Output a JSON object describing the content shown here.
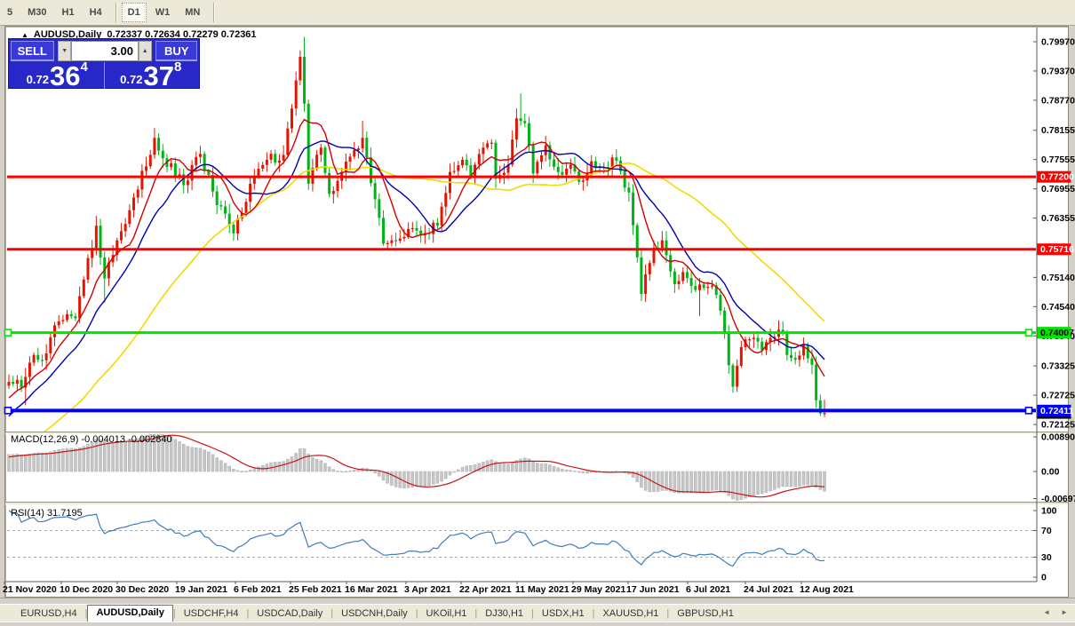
{
  "toolbar": {
    "items": [
      {
        "label": "5",
        "active": false
      },
      {
        "label": "M30",
        "active": false
      },
      {
        "label": "H1",
        "active": false
      },
      {
        "label": "H4",
        "active": false
      },
      {
        "separator": true
      },
      {
        "label": "D1",
        "active": true
      },
      {
        "label": "W1",
        "active": false
      },
      {
        "label": "MN",
        "active": false
      },
      {
        "separator": true
      }
    ]
  },
  "chart_header": {
    "marker": "▲",
    "symbol": "AUDUSD,Daily",
    "values": "0.72337 0.72634 0.72279 0.72361"
  },
  "trade_panel": {
    "sell_label": "SELL",
    "buy_label": "BUY",
    "volume": "3.00",
    "spinner_down": "▼",
    "spinner_up": "▲",
    "bid": {
      "prefix": "0.72",
      "big": "36",
      "sup": "4"
    },
    "ask": {
      "prefix": "0.72",
      "big": "37",
      "sup": "8"
    }
  },
  "macd": {
    "label": "MACD(12,26,9) -0.004013 -0.002840",
    "axis": [
      "0.008903",
      "0.00",
      "-0.006977"
    ]
  },
  "rsi": {
    "label": "RSI(14) 31.7195",
    "axis": [
      "100",
      "70",
      "30",
      "0"
    ],
    "levels": [
      70,
      30
    ]
  },
  "price_axis": {
    "ticks": [
      "0.79970",
      "0.79370",
      "0.78770",
      "0.78155",
      "0.77555",
      "0.76955",
      "0.76355",
      "0.75140",
      "0.74540",
      "0.73940",
      "0.73325",
      "0.72725",
      "0.72125"
    ]
  },
  "current_price_label": {
    "text": "0.72361",
    "price": 0.72361,
    "bg": "#000000",
    "fg": "#FFFFFF"
  },
  "x_axis": {
    "labels": [
      "21 Nov 2020",
      "10 Dec 2020",
      "30 Dec 2020",
      "19 Jan 2021",
      "6 Feb 2021",
      "25 Feb 2021",
      "16 Mar 2021",
      "3 Apr 2021",
      "22 Apr 2021",
      "11 May 2021",
      "29 May 2021",
      "17 Jun 2021",
      "6 Jul 2021",
      "24 Jul 2021",
      "12 Aug 2021"
    ]
  },
  "chart_data": {
    "type": "candlestick",
    "symbol": "AUDUSD",
    "timeframe": "Daily",
    "bars_count": 197,
    "up_color": "#E51400",
    "down_color": "#00B418",
    "price_range": {
      "top": 0.80261,
      "bottom": 0.7198
    },
    "current_bar": {
      "open": 0.72337,
      "high": 0.72634,
      "low": 0.72279,
      "close": 0.72361
    },
    "close_waypoints": [
      [
        0,
        0.73
      ],
      [
        3,
        0.7288
      ],
      [
        6,
        0.7355
      ],
      [
        8,
        0.7344
      ],
      [
        12,
        0.7424
      ],
      [
        16,
        0.743
      ],
      [
        21,
        0.762
      ],
      [
        23,
        0.7512
      ],
      [
        26,
        0.759
      ],
      [
        31,
        0.7694
      ],
      [
        35,
        0.78
      ],
      [
        37,
        0.7758
      ],
      [
        42,
        0.7703
      ],
      [
        46,
        0.7767
      ],
      [
        50,
        0.7662
      ],
      [
        54,
        0.7604
      ],
      [
        58,
        0.7706
      ],
      [
        62,
        0.7755
      ],
      [
        66,
        0.7765
      ],
      [
        70,
        0.7966
      ],
      [
        71,
        0.787
      ],
      [
        72,
        0.7706
      ],
      [
        75,
        0.778
      ],
      [
        77,
        0.7685
      ],
      [
        80,
        0.773
      ],
      [
        85,
        0.78
      ],
      [
        86,
        0.776
      ],
      [
        90,
        0.7583
      ],
      [
        92,
        0.759
      ],
      [
        95,
        0.7597
      ],
      [
        97,
        0.7615
      ],
      [
        100,
        0.7605
      ],
      [
        103,
        0.762
      ],
      [
        106,
        0.773
      ],
      [
        109,
        0.7755
      ],
      [
        111,
        0.772
      ],
      [
        114,
        0.778
      ],
      [
        116,
        0.779
      ],
      [
        117,
        0.7716
      ],
      [
        120,
        0.7745
      ],
      [
        122,
        0.784
      ],
      [
        124,
        0.783
      ],
      [
        126,
        0.7727
      ],
      [
        129,
        0.7785
      ],
      [
        132,
        0.773
      ],
      [
        135,
        0.7745
      ],
      [
        137,
        0.771
      ],
      [
        140,
        0.7752
      ],
      [
        143,
        0.774
      ],
      [
        146,
        0.7753
      ],
      [
        149,
        0.7688
      ],
      [
        151,
        0.7555
      ],
      [
        152,
        0.748
      ],
      [
        155,
        0.7575
      ],
      [
        157,
        0.759
      ],
      [
        160,
        0.75
      ],
      [
        162,
        0.7525
      ],
      [
        165,
        0.7488
      ],
      [
        168,
        0.7495
      ],
      [
        170,
        0.7478
      ],
      [
        172,
        0.74
      ],
      [
        174,
        0.729
      ],
      [
        176,
        0.7371
      ],
      [
        179,
        0.739
      ],
      [
        181,
        0.7365
      ],
      [
        183,
        0.739
      ],
      [
        186,
        0.74
      ],
      [
        187,
        0.7355
      ],
      [
        189,
        0.7345
      ],
      [
        191,
        0.7375
      ],
      [
        193,
        0.7335
      ],
      [
        194,
        0.7262
      ],
      [
        195,
        0.7235
      ],
      [
        196,
        0.72361
      ]
    ],
    "special_wicks": [
      {
        "index": 4,
        "low": 0.7252
      },
      {
        "index": 21,
        "high": 0.764
      },
      {
        "index": 23,
        "low": 0.7462
      },
      {
        "index": 35,
        "high": 0.782
      },
      {
        "index": 70,
        "high": 0.7979
      },
      {
        "index": 71,
        "high": 0.8007,
        "low": 0.7858
      },
      {
        "index": 85,
        "high": 0.7835
      },
      {
        "index": 117,
        "low": 0.7707
      },
      {
        "index": 122,
        "high": 0.786
      },
      {
        "index": 123,
        "high": 0.7891
      },
      {
        "index": 152,
        "low": 0.7478
      },
      {
        "index": 166,
        "low": 0.7435
      },
      {
        "index": 174,
        "low": 0.7289
      },
      {
        "index": 186,
        "high": 0.7408
      },
      {
        "index": 191,
        "high": 0.7389
      }
    ],
    "prehistory": {
      "len": 45,
      "start": 0.706,
      "mid": 0.715,
      "end": 0.729
    },
    "moving_averages": [
      {
        "period": 45,
        "color": "#EFDC00",
        "width": 1.6
      },
      {
        "period": 16,
        "color": "#0000B0",
        "width": 1.4
      },
      {
        "period": 8,
        "color": "#D40000",
        "width": 1.4
      }
    ],
    "macd_params": {
      "fast": 12,
      "slow": 26,
      "signal": 9,
      "macd_value": -0.004013,
      "signal_value": -0.00284,
      "scale_max": 0.008903,
      "scale_min": -0.006977,
      "histogram_color": "#C6C6C6",
      "histogram_edge": "#ADADAD",
      "signal_color": "#C81414"
    },
    "rsi_params": {
      "period": 14,
      "value": 31.7195,
      "line_color": "#3E7DC0",
      "level_color": "#ABABAB"
    },
    "horizontal_lines": [
      {
        "price": 0.772,
        "label": "0.77200",
        "color": "#FF0000",
        "width": 3,
        "text_color": "#FFFFFF",
        "handles": false
      },
      {
        "price": 0.75716,
        "label": "0.75716",
        "color": "#FF0000",
        "width": 3,
        "text_color": "#FFFFFF",
        "handles": false
      },
      {
        "price": 0.74007,
        "label": "0.74007",
        "color": "#00E400",
        "width": 3,
        "text_color": "#000000",
        "handles": true
      },
      {
        "price": 0.72411,
        "label": "0.72411",
        "color": "#0000FF",
        "width": 4,
        "text_color": "#FFFFFF",
        "handles": true
      }
    ]
  },
  "tabs": {
    "items": [
      {
        "label": "EURUSD,H4",
        "active": false
      },
      {
        "label": "AUDUSD,Daily",
        "active": true
      },
      {
        "label": "USDCHF,H4",
        "active": false
      },
      {
        "label": "USDCAD,Daily",
        "active": false
      },
      {
        "label": "USDCNH,Daily",
        "active": false
      },
      {
        "label": "UKOil,H1",
        "active": false
      },
      {
        "label": "DJ30,H1",
        "active": false
      },
      {
        "label": "USDX,H1",
        "active": false
      },
      {
        "label": "XAUUSD,H1",
        "active": false
      },
      {
        "label": "GBPUSD,H1",
        "active": false
      }
    ],
    "nav_left": "◄",
    "nav_right": "►"
  }
}
